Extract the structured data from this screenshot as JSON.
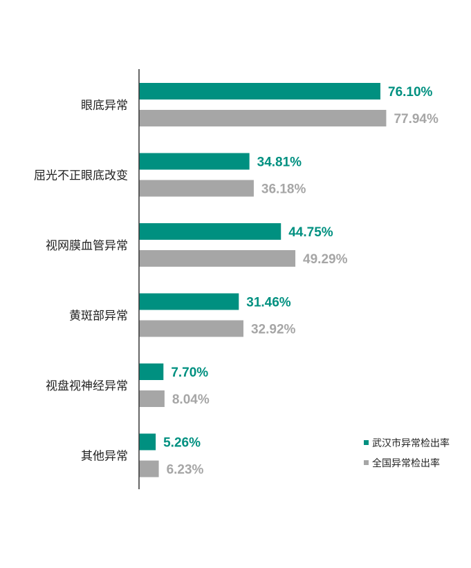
{
  "chart_data": {
    "type": "bar",
    "orientation": "horizontal",
    "categories": [
      "眼底异常",
      "屈光不正眼底改变",
      "视网膜血管异常",
      "黄斑部异常",
      "视盘视神经异常",
      "其他异常"
    ],
    "series": [
      {
        "name": "武汉市异常检出率",
        "color": "#009080",
        "values": [
          76.1,
          34.81,
          44.75,
          31.46,
          7.7,
          5.26
        ],
        "labels": [
          "76.10%",
          "34.81%",
          "44.75%",
          "31.46%",
          "7.70%",
          "5.26%"
        ]
      },
      {
        "name": "全国异常检出率",
        "color": "#a6a6a6",
        "values": [
          77.94,
          36.18,
          49.29,
          32.92,
          8.04,
          6.23
        ],
        "labels": [
          "77.94%",
          "36.18%",
          "49.29%",
          "32.92%",
          "8.04%",
          "6.23%"
        ]
      }
    ],
    "xlim": [
      0,
      100
    ],
    "grid": false,
    "legend_position": "bottom-right"
  }
}
